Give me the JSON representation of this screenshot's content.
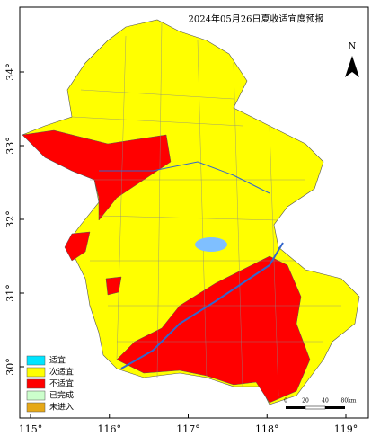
{
  "title": "2024年05月26日夏收适宜度预报",
  "legend": [
    {
      "label": "适宜",
      "color": "#00e5ff"
    },
    {
      "label": "次适宜",
      "color": "#ffff00"
    },
    {
      "label": "不适宜",
      "color": "#ff0000"
    },
    {
      "label": "已完成",
      "color": "#ccffcc"
    },
    {
      "label": "未进入",
      "color": "#e6a817"
    }
  ],
  "lon_ticks": [
    {
      "value": 115,
      "label": "115°"
    },
    {
      "value": 116,
      "label": "116°"
    },
    {
      "value": 117,
      "label": "117°"
    },
    {
      "value": 118,
      "label": "118°"
    },
    {
      "value": 119,
      "label": "119°"
    }
  ],
  "lat_ticks": [
    {
      "value": 30,
      "label": "30°"
    },
    {
      "value": 31,
      "label": "31°"
    },
    {
      "value": 32,
      "label": "32°"
    },
    {
      "value": 33,
      "label": "33°"
    },
    {
      "value": 34,
      "label": "34°"
    }
  ],
  "north": "N",
  "scale": [
    "0",
    "20",
    "40",
    "80km"
  ]
}
